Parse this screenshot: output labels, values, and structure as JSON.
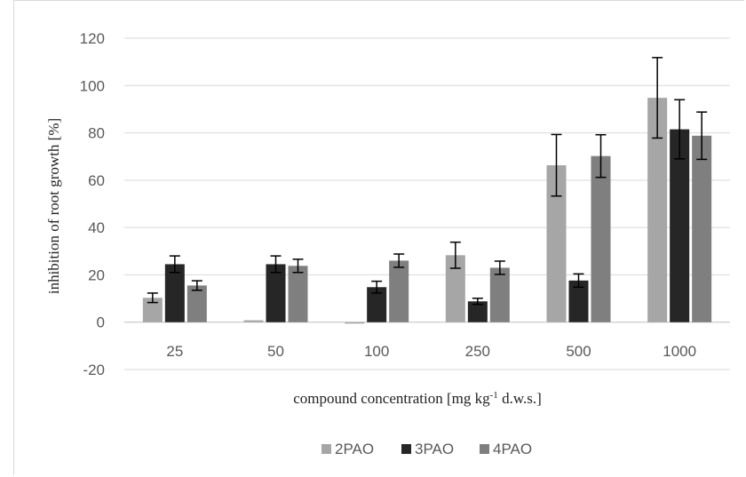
{
  "chart_data": {
    "type": "bar",
    "title": "",
    "xlabel": "compound concentration [mg kg",
    "xlabel_sup": "-1",
    "xlabel_tail": " d.w.s.]",
    "ylabel": "inhibition of root growth [%]",
    "ylim": [
      -20,
      120
    ],
    "yticks": [
      -20,
      0,
      20,
      40,
      60,
      80,
      100,
      120
    ],
    "categories": [
      "25",
      "50",
      "100",
      "250",
      "500",
      "1000"
    ],
    "legend_position": "bottom",
    "grid": true,
    "series": [
      {
        "name": "2PAO",
        "color": "#a6a6a6",
        "values": [
          10.3,
          0.8,
          -0.6,
          28.3,
          66.3,
          94.8
        ],
        "errors": [
          2.0,
          0.3,
          0.3,
          5.5,
          13.0,
          17.0
        ]
      },
      {
        "name": "3PAO",
        "color": "#262626",
        "values": [
          24.5,
          24.5,
          14.8,
          8.8,
          17.6,
          81.5
        ],
        "errors": [
          3.5,
          3.5,
          2.5,
          1.3,
          2.8,
          12.5
        ]
      },
      {
        "name": "4PAO",
        "color": "#7f7f7f",
        "values": [
          15.5,
          23.8,
          26.0,
          23.0,
          70.2,
          78.8
        ],
        "errors": [
          2.0,
          2.8,
          2.8,
          2.8,
          9.0,
          10.0
        ]
      }
    ]
  }
}
